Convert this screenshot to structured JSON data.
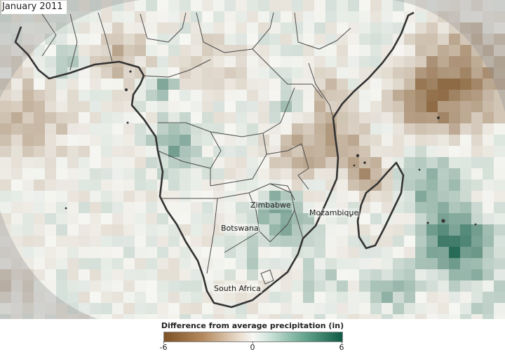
{
  "map": {
    "date": "January 2011",
    "colors": {
      "dry": "#7c5226",
      "neutral": "#f7f7f4",
      "wet": "#0e5a44",
      "coastline": "#333333",
      "border": "#4a4a4a"
    }
  },
  "labels": {
    "zimbabwe": "Zimbabwe",
    "mozambique": "Mozambique",
    "botswana": "Botswana",
    "south_africa": "South Africa"
  },
  "legend": {
    "title": "Difference from average precipitation (in)",
    "min": "-6",
    "mid": "0",
    "max": "6",
    "range": [
      -6,
      6
    ]
  }
}
